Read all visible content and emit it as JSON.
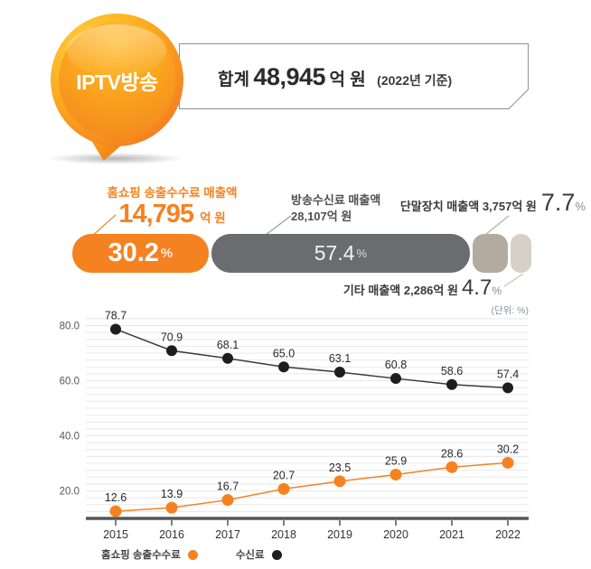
{
  "balloon": {
    "label": "IPTV방송"
  },
  "header": {
    "prefix": "합계",
    "value": "48,945",
    "unit": "억 원",
    "note": "(2022년 기준)"
  },
  "breakdown": {
    "percent_sign": "%",
    "segments": [
      {
        "label": "홈쇼핑 송출수수료 매출액",
        "amount": "14,795",
        "amount_unit": "억 원",
        "percent": "30.2",
        "color": "#f58220"
      },
      {
        "label": "방송수신료 매출액",
        "amount": "28,107억 원",
        "percent": "57.4",
        "color": "#6b6c6f"
      },
      {
        "label": "단말장치 매출액",
        "amount": "3,757억 원",
        "percent": "7.7",
        "color": "#b3aaa0"
      },
      {
        "label": "기타 매출액",
        "amount": "2,286억 원",
        "percent": "4.7",
        "color": "#d6d0c7"
      }
    ]
  },
  "chart_data": {
    "type": "line",
    "unit_label": "(단위: %)",
    "x": [
      "2015",
      "2016",
      "2017",
      "2018",
      "2019",
      "2020",
      "2021",
      "2022"
    ],
    "series": [
      {
        "name": "수신료",
        "color": "#1e1e1f",
        "line_color": "#3a3a3a",
        "values": [
          78.7,
          70.9,
          68.1,
          65.0,
          63.1,
          60.8,
          58.6,
          57.4
        ]
      },
      {
        "name": "홈쇼핑 송출수수료",
        "color": "#f58220",
        "line_color": "#f58220",
        "values": [
          12.6,
          13.9,
          16.7,
          20.7,
          23.5,
          25.9,
          28.6,
          30.2
        ]
      }
    ],
    "yticks": [
      20.0,
      40.0,
      60.0,
      80.0
    ],
    "ylim": [
      10,
      84
    ],
    "grid_step": 2.5,
    "grid": true,
    "legend": [
      "홈쇼핑 송출수수료",
      "수신료"
    ],
    "legend_position": "bottom-left"
  }
}
